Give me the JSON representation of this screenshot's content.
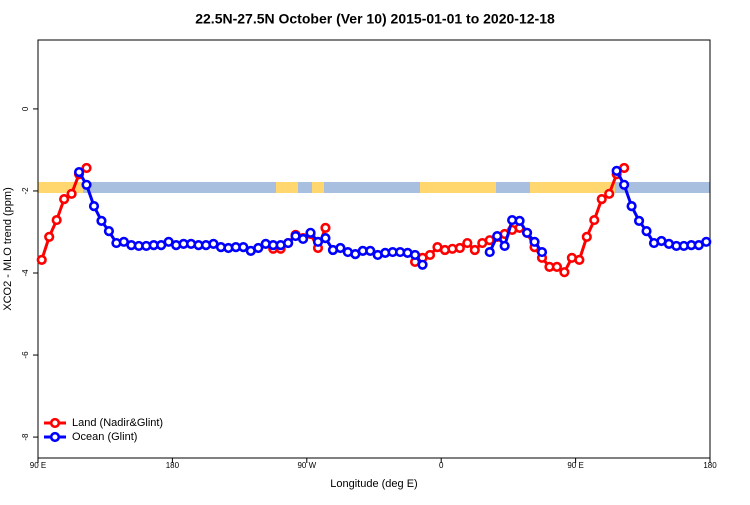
{
  "chart_data": {
    "type": "line",
    "title": "22.5N-27.5N October (Ver 10)   2015-01-01 to 2020-12-18",
    "xlabel": "Longitude (deg E)",
    "ylabel": "XCO2 - MLO trend (ppm)",
    "x": [
      92.5,
      97.5,
      102.5,
      107.5,
      112.5,
      117.5,
      122.5,
      127.5,
      132.5,
      137.5,
      142.5,
      147.5,
      152.5,
      157.5,
      162.5,
      167.5,
      172.5,
      177.5,
      182.5,
      187.5,
      192.5,
      197.5,
      202.5,
      207.5,
      212.5,
      217.5,
      222.5,
      227.5,
      232.5,
      237.5,
      242.5,
      247.5,
      252.5,
      257.5,
      262.5,
      267.5,
      272.5,
      277.5,
      282.5,
      287.5,
      292.5,
      297.5,
      302.5,
      307.5,
      312.5,
      317.5,
      322.5,
      327.5,
      332.5,
      337.5,
      342.5,
      347.5,
      352.5,
      357.5,
      362.5,
      367.5,
      372.5,
      377.5,
      382.5,
      387.5,
      392.5,
      397.5,
      402.5,
      407.5,
      412.5,
      417.5,
      422.5,
      427.5,
      432.5,
      437.5,
      442.5,
      447.5,
      452.5,
      457.5,
      462.5,
      467.5,
      472.5,
      477.5,
      482.5,
      487.5,
      492.5,
      497.5,
      502.5,
      507.5,
      512.5,
      517.5,
      522.5,
      527.5,
      532.5,
      537.5
    ],
    "series": [
      {
        "name": "Land (Nadir&Glint)",
        "color": "#ff0000",
        "values": [
          -3.68,
          -3.12,
          -2.71,
          -2.2,
          -2.07,
          -1.59,
          -1.44,
          null,
          null,
          null,
          null,
          null,
          null,
          null,
          null,
          null,
          null,
          null,
          null,
          null,
          null,
          null,
          null,
          null,
          null,
          null,
          null,
          null,
          null,
          null,
          null,
          -3.41,
          -3.41,
          -3.27,
          -3.07,
          -3.15,
          -3.05,
          -3.39,
          -2.9,
          null,
          null,
          null,
          null,
          null,
          null,
          null,
          null,
          null,
          null,
          null,
          -3.73,
          -3.63,
          -3.56,
          -3.37,
          -3.44,
          -3.41,
          -3.39,
          -3.27,
          -3.44,
          -3.27,
          -3.2,
          -3.12,
          -3.05,
          -2.95,
          -2.9,
          -3.02,
          -3.37,
          -3.63,
          -3.85,
          -3.85,
          -3.98,
          -3.63,
          -3.68,
          -3.12,
          -2.71,
          -2.2,
          -2.07,
          -1.59,
          -1.44,
          null,
          null,
          null,
          null,
          null,
          null,
          null,
          null,
          null,
          null,
          null
        ]
      },
      {
        "name": "Ocean (Glint)",
        "color": "#0000ff",
        "values": [
          null,
          null,
          null,
          null,
          null,
          -1.54,
          -1.85,
          -2.37,
          -2.73,
          -2.98,
          -3.27,
          -3.24,
          -3.32,
          -3.34,
          -3.34,
          -3.32,
          -3.32,
          -3.24,
          -3.32,
          -3.29,
          -3.29,
          -3.32,
          -3.32,
          -3.29,
          -3.37,
          -3.39,
          -3.37,
          -3.37,
          -3.46,
          -3.39,
          -3.29,
          -3.32,
          -3.32,
          -3.27,
          -3.1,
          -3.17,
          -3.02,
          -3.24,
          -3.15,
          -3.44,
          -3.39,
          -3.49,
          -3.54,
          -3.46,
          -3.46,
          -3.56,
          -3.51,
          -3.49,
          -3.49,
          -3.51,
          -3.56,
          -3.8,
          null,
          null,
          null,
          null,
          null,
          null,
          null,
          null,
          -3.49,
          -3.1,
          -3.34,
          -2.71,
          -2.73,
          -3.02,
          -3.24,
          -3.49,
          null,
          null,
          null,
          null,
          null,
          null,
          null,
          null,
          null,
          -1.51,
          -1.85,
          -2.37,
          -2.73,
          -2.98,
          -3.27,
          -3.22,
          -3.29,
          -3.34,
          -3.34,
          -3.32,
          -3.32,
          -3.24
        ]
      }
    ],
    "xlim": [
      90,
      540
    ],
    "xticks": [
      {
        "value": 90,
        "label": "90 E"
      },
      180,
      {
        "value": 270,
        "label": "90 W"
      },
      {
        "value": 360,
        "label": "0"
      },
      {
        "value": 450,
        "label": "90 E"
      },
      180.0001
    ],
    "ylim": [
      -8.51,
      1.68
    ],
    "yticks": [
      0,
      -2,
      -4,
      -6,
      -8
    ],
    "legend": "bottom-left"
  }
}
